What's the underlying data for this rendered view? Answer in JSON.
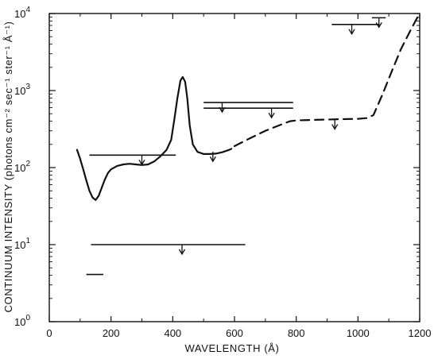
{
  "chart_data": {
    "type": "line",
    "title": "",
    "xlabel": "WAVELENGTH (Å)",
    "ylabel": "CONTINUUM INTENSITY (photons cm⁻² sec⁻¹ ster⁻¹ Å⁻¹)",
    "xlim": [
      0,
      1200
    ],
    "ylim": [
      1,
      10000
    ],
    "y_scale": "log",
    "grid": false,
    "legend": "none",
    "x_ticks": [
      0,
      200,
      400,
      600,
      800,
      1000,
      1200
    ],
    "y_ticks": [
      {
        "value": 1,
        "base": "10",
        "exp": "0"
      },
      {
        "value": 10,
        "base": "10",
        "exp": "1"
      },
      {
        "value": 100,
        "base": "10",
        "exp": "2"
      },
      {
        "value": 1000,
        "base": "10",
        "exp": "3"
      },
      {
        "value": 10000,
        "base": "10",
        "exp": "4"
      }
    ],
    "series": [
      {
        "style": "solid",
        "points": [
          [
            90,
            170
          ],
          [
            100,
            130
          ],
          [
            110,
            95
          ],
          [
            120,
            68
          ],
          [
            130,
            50
          ],
          [
            140,
            41
          ],
          [
            150,
            38
          ],
          [
            160,
            43
          ],
          [
            170,
            55
          ],
          [
            180,
            70
          ],
          [
            190,
            85
          ],
          [
            200,
            95
          ],
          [
            220,
            105
          ],
          [
            240,
            110
          ],
          [
            260,
            112
          ],
          [
            280,
            110
          ],
          [
            300,
            108
          ],
          [
            320,
            110
          ],
          [
            340,
            120
          ],
          [
            360,
            140
          ],
          [
            380,
            170
          ],
          [
            395,
            230
          ],
          [
            405,
            420
          ],
          [
            415,
            800
          ],
          [
            425,
            1350
          ],
          [
            432,
            1500
          ],
          [
            440,
            1300
          ],
          [
            447,
            800
          ],
          [
            455,
            350
          ],
          [
            465,
            200
          ],
          [
            480,
            160
          ],
          [
            500,
            150
          ],
          [
            520,
            150
          ],
          [
            540,
            152
          ],
          [
            560,
            158
          ],
          [
            580,
            168
          ],
          [
            590,
            175
          ]
        ]
      },
      {
        "style": "dashed",
        "points": [
          [
            600,
            190
          ],
          [
            650,
            240
          ],
          [
            700,
            300
          ],
          [
            750,
            360
          ],
          [
            780,
            400
          ],
          [
            800,
            410
          ],
          [
            850,
            415
          ],
          [
            900,
            420
          ],
          [
            950,
            425
          ],
          [
            1000,
            430
          ],
          [
            1030,
            440
          ],
          [
            1050,
            480
          ],
          [
            1080,
            900
          ],
          [
            1110,
            1800
          ],
          [
            1140,
            3500
          ],
          [
            1170,
            6000
          ],
          [
            1190,
            8500
          ],
          [
            1200,
            10000
          ]
        ]
      }
    ],
    "upper_limits": [
      {
        "x_start": 130,
        "x_end": 410,
        "value": 145,
        "arrow_x": 300
      },
      {
        "x_start": 135,
        "x_end": 635,
        "value": 10,
        "arrow_x": 430
      },
      {
        "x_start": 500,
        "x_end": 790,
        "value": 700,
        "arrow_x": 560
      },
      {
        "x_start": 500,
        "x_end": 790,
        "value": 590,
        "arrow_x": 720
      },
      {
        "x_start": 915,
        "x_end": 1070,
        "value": 7200,
        "arrow_x": 980
      },
      {
        "x_start": 1045,
        "x_end": 1090,
        "value": 8800,
        "arrow_x": 1068
      },
      {
        "x_start": 0,
        "x_end": 0,
        "value": 420,
        "arrow_x": 925
      },
      {
        "x_start": 0,
        "x_end": 0,
        "value": 160,
        "arrow_x": 530
      }
    ],
    "segments": [
      {
        "x_start": 120,
        "x_end": 175,
        "value": 4.1
      }
    ]
  }
}
